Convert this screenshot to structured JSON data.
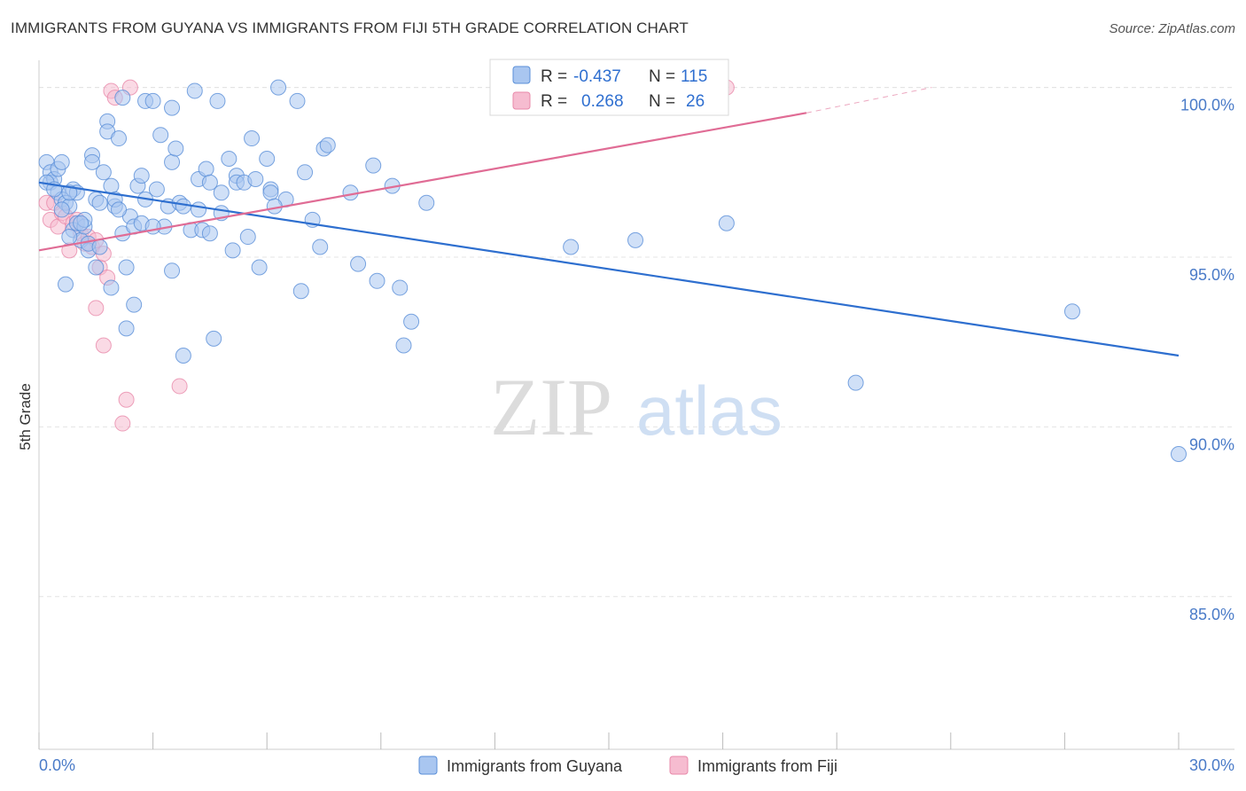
{
  "header": {
    "title": "IMMIGRANTS FROM GUYANA VS IMMIGRANTS FROM FIJI 5TH GRADE CORRELATION CHART",
    "source": "Source: ZipAtlas.com"
  },
  "watermark": {
    "zip": "ZIP",
    "atlas": "atlas"
  },
  "colors": {
    "guyana_fill": "#a9c6f0",
    "guyana_stroke": "#5a8fd8",
    "guyana_line": "#2e6fcf",
    "fiji_fill": "#f6bcd0",
    "fiji_stroke": "#e889aa",
    "fiji_line": "#e06c95"
  },
  "legend": {
    "rows": [
      {
        "r_label": "R =",
        "r_value": "-0.437",
        "n_label": "N =",
        "n_value": "115"
      },
      {
        "r_label": "R =",
        "r_value": "0.268",
        "n_label": "N =",
        "n_value": "26"
      }
    ]
  },
  "chart_data": {
    "type": "scatter",
    "xlabel": "",
    "ylabel": "5th Grade",
    "xlim": [
      0,
      30
    ],
    "ylim": [
      80.5,
      100.8
    ],
    "x_tick_labels": [
      "0.0%",
      "30.0%"
    ],
    "y_ticks": [
      85,
      90,
      95,
      100
    ],
    "y_tick_labels": [
      "85.0%",
      "90.0%",
      "95.0%",
      "100.0%"
    ],
    "grid": true,
    "legend_position": "bottom",
    "series": [
      {
        "name": "Immigrants from Guyana",
        "trend": {
          "x": [
            0,
            30
          ],
          "y": [
            97.2,
            92.1
          ]
        },
        "points": [
          [
            0.2,
            97.8
          ],
          [
            0.3,
            97.5
          ],
          [
            0.3,
            97.2
          ],
          [
            0.4,
            97.3
          ],
          [
            0.5,
            96.9
          ],
          [
            0.5,
            97.6
          ],
          [
            0.6,
            97.8
          ],
          [
            0.6,
            96.7
          ],
          [
            0.7,
            96.6
          ],
          [
            0.8,
            96.5
          ],
          [
            0.9,
            97.0
          ],
          [
            0.9,
            95.8
          ],
          [
            1.0,
            96.9
          ],
          [
            1.0,
            96.0
          ],
          [
            1.1,
            95.5
          ],
          [
            0.7,
            94.2
          ],
          [
            0.8,
            95.6
          ],
          [
            1.2,
            95.9
          ],
          [
            1.2,
            96.1
          ],
          [
            1.3,
            95.2
          ],
          [
            1.4,
            98.0
          ],
          [
            1.4,
            97.8
          ],
          [
            1.5,
            96.7
          ],
          [
            1.6,
            96.6
          ],
          [
            1.7,
            97.5
          ],
          [
            1.8,
            99.0
          ],
          [
            1.8,
            98.7
          ],
          [
            1.9,
            97.1
          ],
          [
            2.0,
            96.5
          ],
          [
            2.0,
            96.7
          ],
          [
            2.1,
            98.5
          ],
          [
            2.2,
            99.7
          ],
          [
            2.2,
            95.7
          ],
          [
            2.3,
            94.7
          ],
          [
            2.4,
            96.2
          ],
          [
            2.5,
            95.9
          ],
          [
            2.3,
            92.9
          ],
          [
            2.5,
            93.6
          ],
          [
            2.6,
            97.1
          ],
          [
            2.7,
            97.4
          ],
          [
            2.8,
            96.7
          ],
          [
            2.8,
            99.6
          ],
          [
            3.0,
            99.6
          ],
          [
            3.1,
            97.0
          ],
          [
            3.2,
            98.6
          ],
          [
            3.3,
            95.9
          ],
          [
            3.4,
            96.5
          ],
          [
            3.5,
            97.8
          ],
          [
            3.5,
            99.4
          ],
          [
            3.6,
            98.2
          ],
          [
            3.7,
            96.6
          ],
          [
            3.8,
            96.5
          ],
          [
            3.8,
            92.1
          ],
          [
            4.0,
            95.8
          ],
          [
            4.1,
            99.9
          ],
          [
            4.2,
            97.3
          ],
          [
            4.2,
            96.4
          ],
          [
            4.3,
            95.8
          ],
          [
            4.4,
            97.6
          ],
          [
            4.5,
            97.2
          ],
          [
            4.5,
            95.7
          ],
          [
            4.6,
            92.6
          ],
          [
            4.7,
            99.6
          ],
          [
            4.8,
            96.9
          ],
          [
            5.0,
            97.9
          ],
          [
            5.1,
            95.2
          ],
          [
            5.2,
            97.4
          ],
          [
            5.2,
            97.2
          ],
          [
            5.4,
            97.2
          ],
          [
            5.6,
            98.5
          ],
          [
            5.7,
            97.3
          ],
          [
            5.8,
            94.7
          ],
          [
            6.0,
            97.9
          ],
          [
            6.1,
            97.0
          ],
          [
            6.1,
            96.9
          ],
          [
            6.3,
            100.0
          ],
          [
            6.5,
            96.7
          ],
          [
            6.8,
            99.6
          ],
          [
            6.9,
            94.0
          ],
          [
            7.0,
            97.5
          ],
          [
            7.4,
            95.3
          ],
          [
            7.5,
            98.2
          ],
          [
            7.6,
            98.3
          ],
          [
            8.2,
            96.9
          ],
          [
            8.4,
            94.8
          ],
          [
            8.8,
            97.7
          ],
          [
            8.9,
            94.3
          ],
          [
            9.3,
            97.1
          ],
          [
            9.5,
            94.1
          ],
          [
            9.6,
            92.4
          ],
          [
            9.8,
            93.1
          ],
          [
            10.2,
            96.6
          ],
          [
            1.5,
            94.7
          ],
          [
            2.1,
            96.4
          ],
          [
            0.2,
            97.2
          ],
          [
            0.4,
            97.0
          ],
          [
            0.6,
            96.4
          ],
          [
            0.8,
            96.9
          ],
          [
            1.1,
            96.0
          ],
          [
            1.3,
            95.4
          ],
          [
            1.6,
            95.3
          ],
          [
            1.9,
            94.1
          ],
          [
            2.7,
            96.0
          ],
          [
            3.0,
            95.9
          ],
          [
            3.5,
            94.6
          ],
          [
            4.8,
            96.3
          ],
          [
            5.5,
            95.6
          ],
          [
            6.2,
            96.5
          ],
          [
            7.2,
            96.1
          ],
          [
            14.0,
            95.3
          ],
          [
            15.7,
            95.5
          ],
          [
            18.1,
            96.0
          ],
          [
            21.5,
            91.3
          ],
          [
            27.2,
            93.4
          ],
          [
            30.0,
            89.2
          ]
        ]
      },
      {
        "name": "Immigrants from Fiji",
        "trend": {
          "x": [
            0,
            20.2
          ],
          "y": [
            95.2,
            99.25
          ],
          "dash_to": {
            "x": 23.5,
            "y": 100.0
          }
        },
        "points": [
          [
            0.2,
            96.6
          ],
          [
            0.3,
            96.1
          ],
          [
            0.4,
            96.6
          ],
          [
            0.5,
            95.9
          ],
          [
            0.6,
            96.3
          ],
          [
            0.7,
            96.2
          ],
          [
            0.8,
            95.2
          ],
          [
            0.9,
            96.0
          ],
          [
            1.0,
            96.1
          ],
          [
            1.1,
            95.7
          ],
          [
            1.2,
            95.4
          ],
          [
            1.3,
            95.6
          ],
          [
            1.4,
            95.3
          ],
          [
            1.5,
            95.5
          ],
          [
            1.5,
            93.5
          ],
          [
            1.6,
            94.7
          ],
          [
            1.7,
            95.1
          ],
          [
            1.7,
            92.4
          ],
          [
            1.8,
            94.4
          ],
          [
            1.9,
            99.9
          ],
          [
            2.0,
            99.7
          ],
          [
            2.2,
            90.1
          ],
          [
            2.3,
            90.8
          ],
          [
            2.4,
            100.0
          ],
          [
            3.7,
            91.2
          ],
          [
            18.1,
            100.0
          ]
        ]
      }
    ]
  },
  "bottom_legend": {
    "guyana_label": "Immigrants from Guyana",
    "fiji_label": "Immigrants from Fiji"
  }
}
